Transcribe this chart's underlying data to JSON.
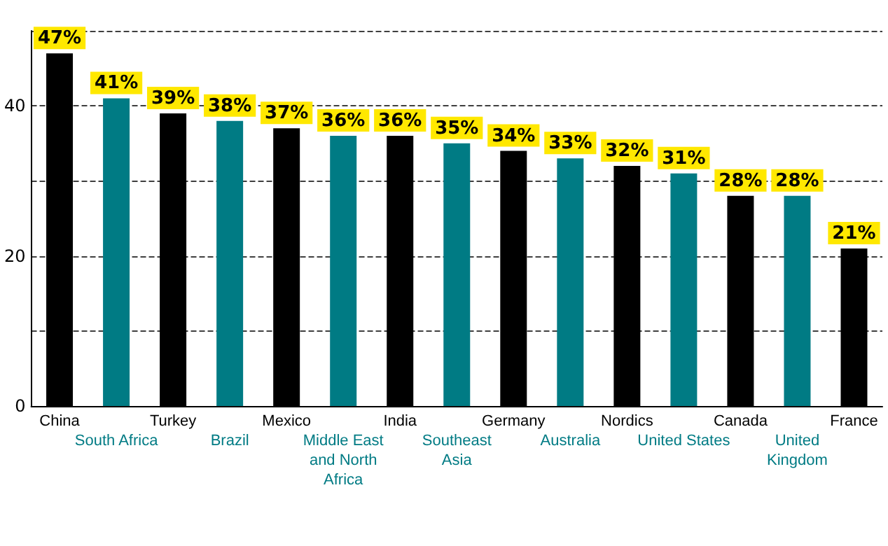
{
  "chart_data": {
    "type": "bar",
    "categories": [
      "China",
      "South Africa",
      "Turkey",
      "Brazil",
      "Mexico",
      "Middle East and North Africa",
      "India",
      "Southeast Asia",
      "Germany",
      "Australia",
      "Nordics",
      "United States",
      "Canada",
      "United Kingdom",
      "France"
    ],
    "values": [
      47,
      41,
      39,
      38,
      37,
      36,
      36,
      35,
      34,
      33,
      32,
      31,
      28,
      28,
      21
    ],
    "value_labels": [
      "47%",
      "41%",
      "39%",
      "38%",
      "37%",
      "36%",
      "36%",
      "35%",
      "34%",
      "33%",
      "32%",
      "31%",
      "28%",
      "28%",
      "21%"
    ],
    "colors": [
      "#000000",
      "#007b84",
      "#000000",
      "#007b84",
      "#000000",
      "#007b84",
      "#000000",
      "#007b84",
      "#000000",
      "#007b84",
      "#000000",
      "#007b84",
      "#000000",
      "#007b84",
      "#000000"
    ],
    "ylim": [
      0,
      50
    ],
    "yticks": [
      0,
      {
        "value": 10,
        "label": null
      },
      20,
      {
        "value": 30,
        "label": null
      },
      40,
      {
        "value": 50,
        "label": null
      }
    ],
    "grid": "y"
  }
}
